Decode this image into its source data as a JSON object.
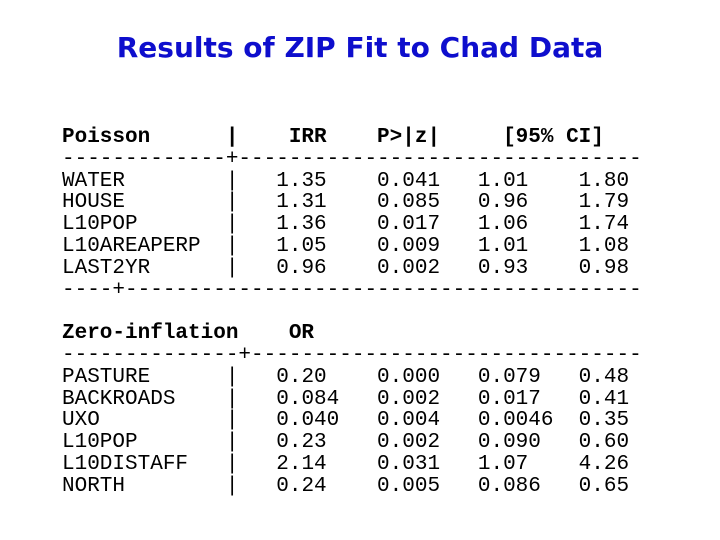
{
  "slide": {
    "title": "Results of ZIP Fit to Chad Data"
  },
  "colors": {
    "title": "#0e0ecd",
    "text": "#000000",
    "background": "#ffffff"
  },
  "table": {
    "pipe": "|",
    "sections": [
      {
        "name": "poisson",
        "header": {
          "label": "Poisson",
          "estimate_label": "IRR",
          "p_label": "P>|z|",
          "ci_label": "[95% CI]"
        },
        "separator_top": "-------------+--------------------------------",
        "separator_bottom": "----+-----------------------------------------",
        "rows": [
          {
            "label": "WATER",
            "estimate": "1.35",
            "p": "0.041",
            "ci_low": "1.01",
            "ci_high": "1.80"
          },
          {
            "label": "HOUSE",
            "estimate": "1.31",
            "p": "0.085",
            "ci_low": "0.96",
            "ci_high": "1.79"
          },
          {
            "label": "L10POP",
            "estimate": "1.36",
            "p": "0.017",
            "ci_low": "1.06",
            "ci_high": "1.74"
          },
          {
            "label": "L10AREAPERP",
            "estimate": "1.05",
            "p": "0.009",
            "ci_low": "1.01",
            "ci_high": "1.08"
          },
          {
            "label": "LAST2YR",
            "estimate": "0.96",
            "p": "0.002",
            "ci_low": "0.93",
            "ci_high": "0.98"
          }
        ]
      },
      {
        "name": "zero-inflation",
        "header": {
          "label": "Zero-inflation",
          "estimate_label": "OR",
          "p_label": "",
          "ci_label": ""
        },
        "separator_top": "--------------+-------------------------------",
        "separator_bottom": "",
        "rows": [
          {
            "label": "PASTURE",
            "estimate": "0.20",
            "p": "0.000",
            "ci_low": "0.079",
            "ci_high": "0.48"
          },
          {
            "label": "BACKROADS",
            "estimate": "0.084",
            "p": "0.002",
            "ci_low": "0.017",
            "ci_high": "0.41"
          },
          {
            "label": "UXO",
            "estimate": "0.040",
            "p": "0.004",
            "ci_low": "0.0046",
            "ci_high": "0.35"
          },
          {
            "label": "L10POP",
            "estimate": "0.23",
            "p": "0.002",
            "ci_low": "0.090",
            "ci_high": "0.60"
          },
          {
            "label": "L10DISTAFF",
            "estimate": "2.14",
            "p": "0.031",
            "ci_low": "1.07",
            "ci_high": "4.26"
          },
          {
            "label": "NORTH",
            "estimate": "0.24",
            "p": "0.005",
            "ci_low": "0.086",
            "ci_high": "0.65"
          }
        ]
      }
    ]
  }
}
